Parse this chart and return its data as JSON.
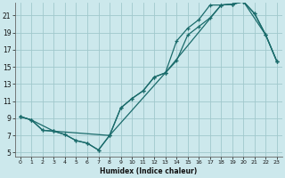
{
  "xlabel": "Humidex (Indice chaleur)",
  "bg_color": "#cce8ec",
  "grid_color": "#a0c8cc",
  "line_color": "#1a6b6b",
  "xlim": [
    -0.5,
    23.5
  ],
  "ylim": [
    4.5,
    22.5
  ],
  "xticks": [
    0,
    1,
    2,
    3,
    4,
    5,
    6,
    7,
    8,
    9,
    10,
    11,
    12,
    13,
    14,
    15,
    16,
    17,
    18,
    19,
    20,
    21,
    22,
    23
  ],
  "yticks": [
    5,
    7,
    9,
    11,
    13,
    15,
    17,
    19,
    21
  ],
  "ytick_labels": [
    "5",
    "7",
    "9",
    "11",
    "13",
    "15",
    "17",
    "19",
    "21"
  ],
  "line1_x": [
    0,
    1,
    2,
    3,
    4,
    5,
    6,
    7,
    8,
    9,
    10,
    11,
    12,
    13,
    14,
    15,
    16,
    17,
    18,
    19,
    20,
    21,
    22,
    23
  ],
  "line1_y": [
    9.2,
    8.8,
    7.6,
    7.5,
    7.1,
    6.4,
    6.1,
    5.3,
    7.0,
    10.2,
    11.3,
    12.2,
    13.8,
    14.3,
    15.7,
    18.7,
    19.7,
    20.7,
    22.2,
    22.3,
    22.6,
    21.2,
    18.7,
    15.6
  ],
  "line2_x": [
    0,
    1,
    2,
    3,
    4,
    5,
    6,
    7,
    8,
    9,
    10,
    11,
    12,
    13,
    14,
    15,
    16,
    17,
    18,
    19,
    20,
    21,
    22,
    23
  ],
  "line2_y": [
    9.2,
    8.8,
    7.6,
    7.5,
    7.1,
    6.4,
    6.1,
    5.3,
    7.0,
    10.2,
    11.3,
    12.2,
    13.8,
    14.3,
    18.0,
    19.5,
    20.5,
    22.2,
    22.2,
    22.3,
    22.6,
    21.2,
    18.7,
    15.6
  ],
  "line3_x": [
    0,
    1,
    3,
    8,
    13,
    18,
    19,
    20,
    22,
    23
  ],
  "line3_y": [
    9.2,
    8.8,
    7.5,
    7.0,
    14.3,
    22.2,
    22.3,
    22.6,
    18.7,
    15.6
  ]
}
